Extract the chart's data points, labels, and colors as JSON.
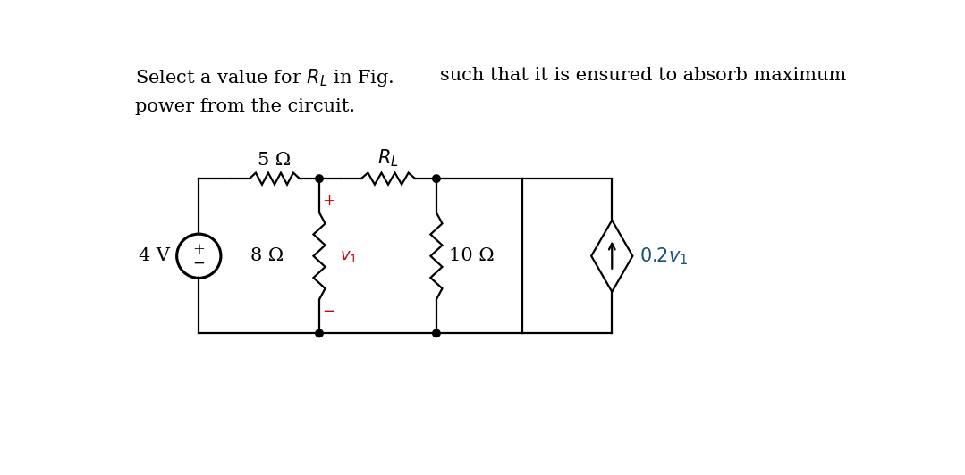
{
  "bg_color": "#ffffff",
  "text_color": "#000000",
  "line_color": "#000000",
  "plus_color": "#cc0000",
  "v1_color": "#cc0000",
  "label_color": "#1a5276",
  "font_size": 15,
  "title1": "Select a value for $R_L$ in Fig.",
  "title2": "such that it is ensured to absorb maximum",
  "title3": "power from the circuit.",
  "label_4V": "4 V",
  "label_8R": "8 Ω",
  "label_5R": "5 Ω",
  "label_10R": "10 Ω",
  "label_RL": "$R_L$",
  "label_v1": "$v_1$",
  "label_dep": "$0.2v_1$"
}
